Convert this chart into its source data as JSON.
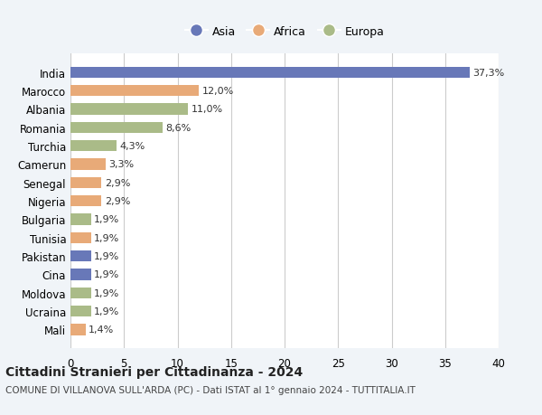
{
  "countries": [
    "India",
    "Marocco",
    "Albania",
    "Romania",
    "Turchia",
    "Camerun",
    "Senegal",
    "Nigeria",
    "Bulgaria",
    "Tunisia",
    "Pakistan",
    "Cina",
    "Moldova",
    "Ucraina",
    "Mali"
  ],
  "values": [
    37.3,
    12.0,
    11.0,
    8.6,
    4.3,
    3.3,
    2.9,
    2.9,
    1.9,
    1.9,
    1.9,
    1.9,
    1.9,
    1.9,
    1.4
  ],
  "labels": [
    "37,3%",
    "12,0%",
    "11,0%",
    "8,6%",
    "4,3%",
    "3,3%",
    "2,9%",
    "2,9%",
    "1,9%",
    "1,9%",
    "1,9%",
    "1,9%",
    "1,9%",
    "1,9%",
    "1,4%"
  ],
  "colors": [
    "#6878b8",
    "#e8aa78",
    "#aabb88",
    "#aabb88",
    "#aabb88",
    "#e8aa78",
    "#e8aa78",
    "#e8aa78",
    "#aabb88",
    "#e8aa78",
    "#6878b8",
    "#6878b8",
    "#aabb88",
    "#aabb88",
    "#e8aa78"
  ],
  "legend_labels": [
    "Asia",
    "Africa",
    "Europa"
  ],
  "legend_colors": [
    "#6878b8",
    "#e8aa78",
    "#aabb88"
  ],
  "title": "Cittadini Stranieri per Cittadinanza - 2024",
  "subtitle": "COMUNE DI VILLANOVA SULL'ARDA (PC) - Dati ISTAT al 1° gennaio 2024 - TUTTITALIA.IT",
  "xlim": [
    0,
    40
  ],
  "xticks": [
    0,
    5,
    10,
    15,
    20,
    25,
    30,
    35,
    40
  ],
  "background_color": "#f0f4f8",
  "bar_background": "#ffffff",
  "grid_color": "#cccccc"
}
